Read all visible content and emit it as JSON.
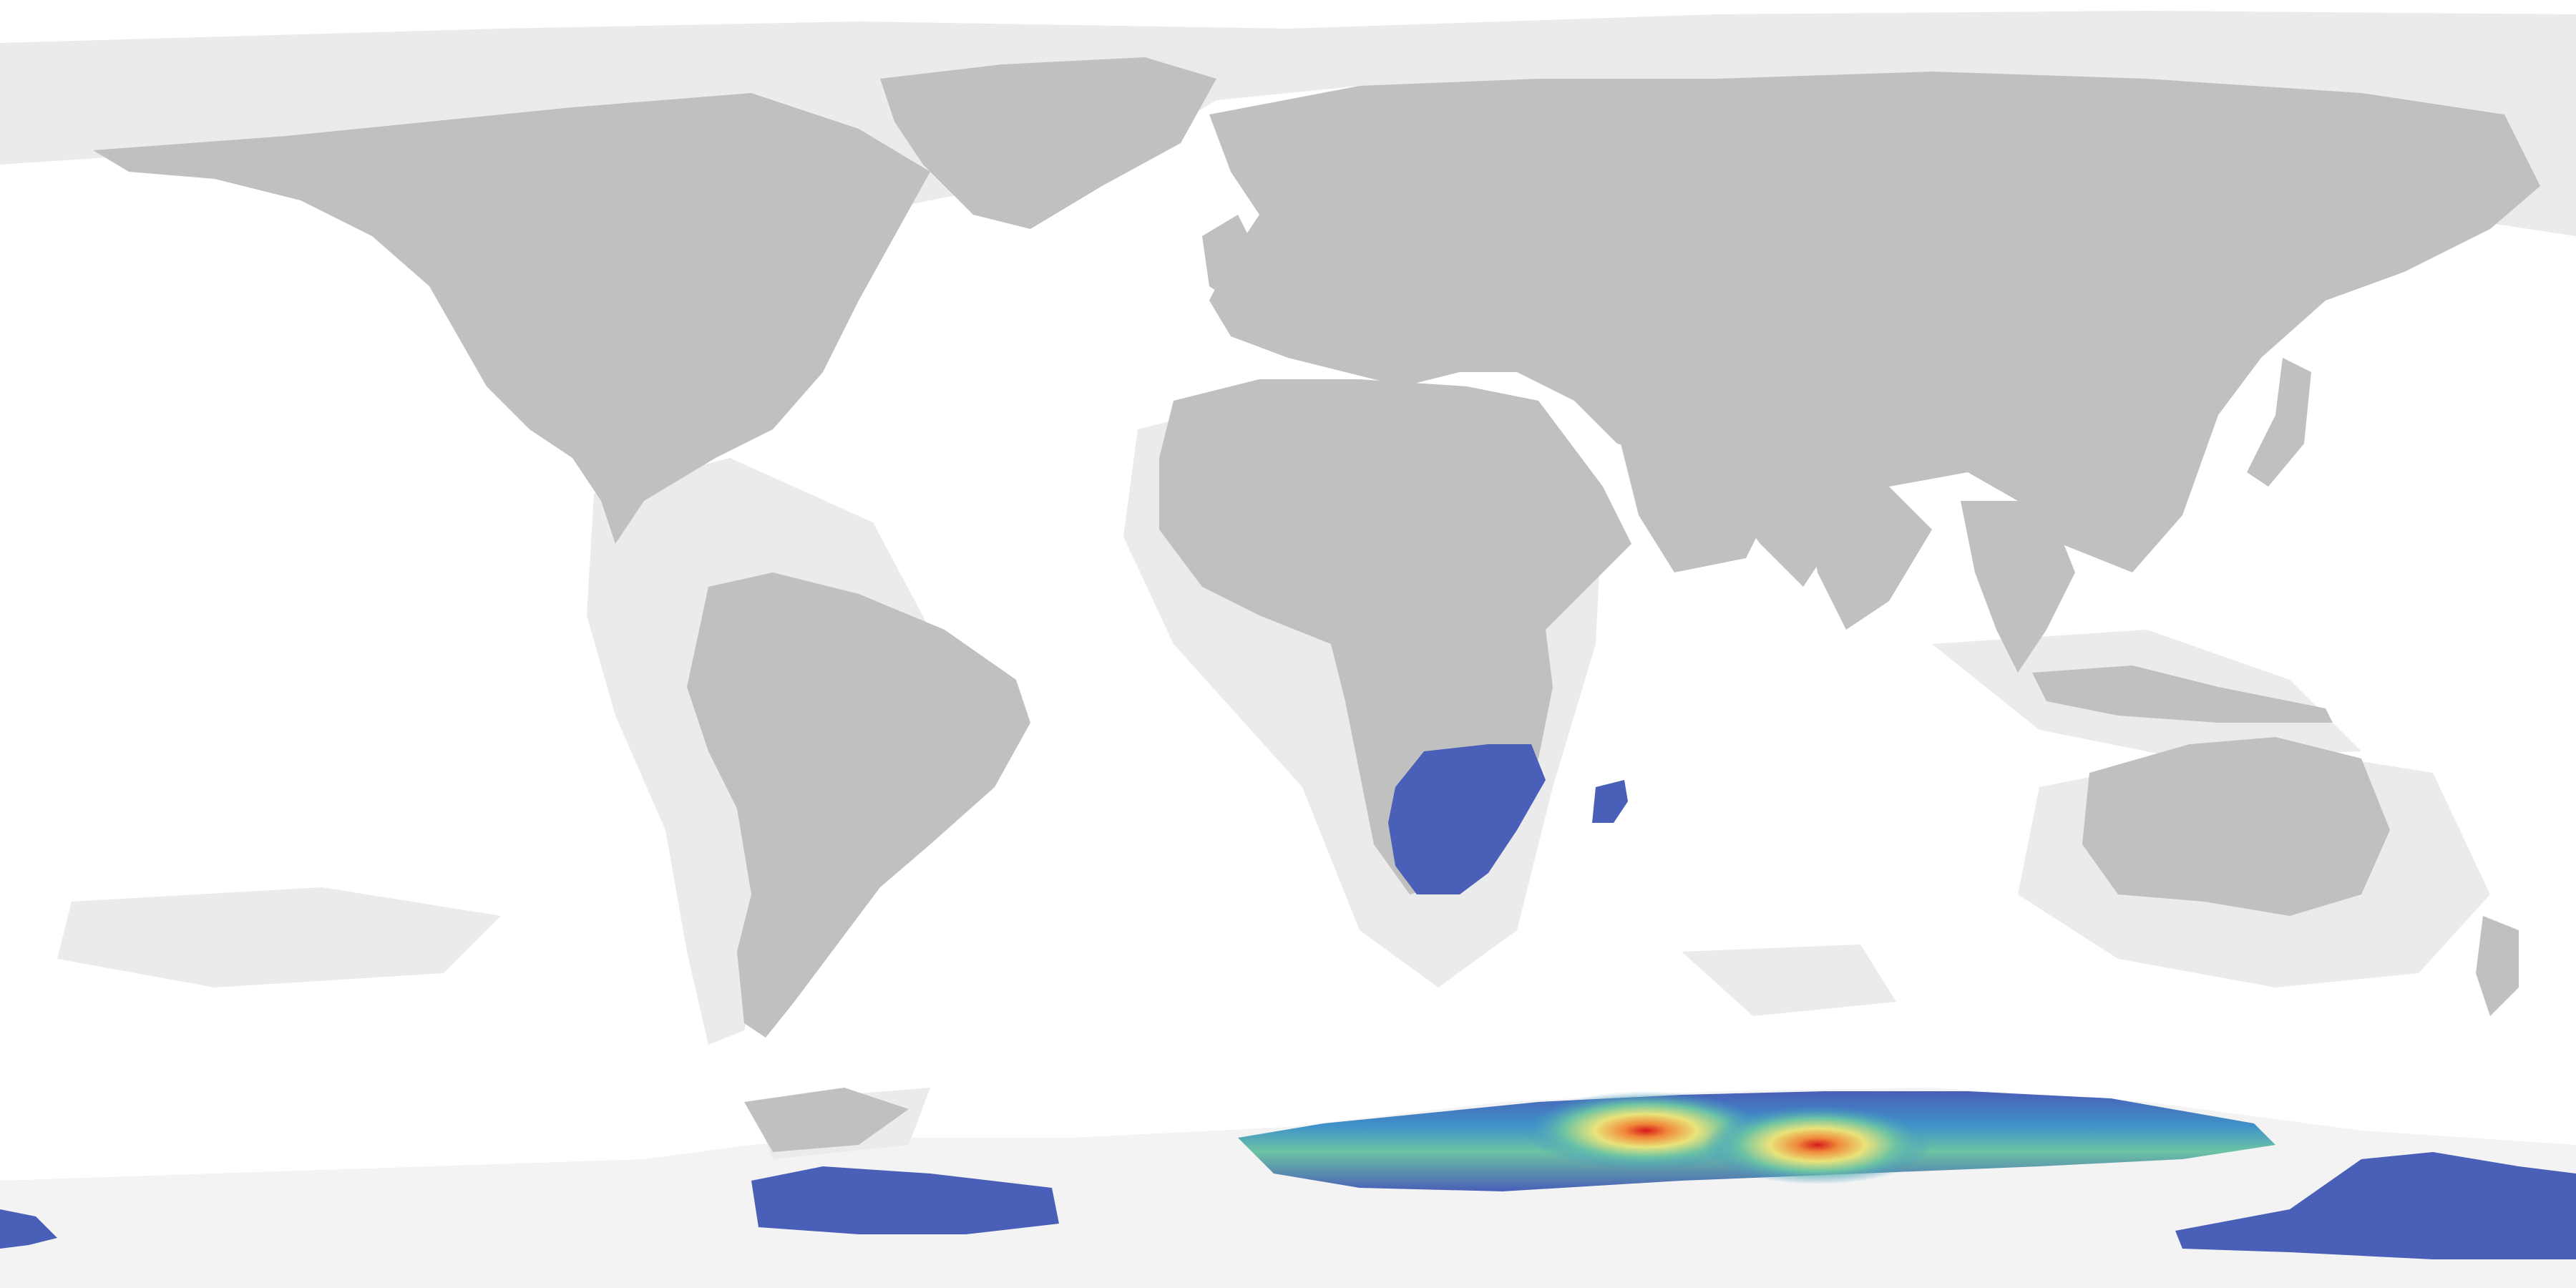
{
  "map": {
    "projection": "equirectangular",
    "colors": {
      "ocean": "#ffffff",
      "shelf": "#efefef",
      "land": "#c0c0c0",
      "ice": "#f3f3f3",
      "density_low": "#4a5fb8",
      "density_mid_low": "#3f93c9",
      "density_mid": "#6cc3a4",
      "density_mid_high": "#e9e37a",
      "density_high": "#f08a3a",
      "density_peak": "#d7191c"
    },
    "density_layer": {
      "regions": [
        "southern-africa",
        "madagascar",
        "south-indian-ocean-antarctic-coast",
        "antarctic-peninsula",
        "ross-sea-coast",
        "antarctic-far-west"
      ],
      "hotspot_count": 2
    }
  }
}
